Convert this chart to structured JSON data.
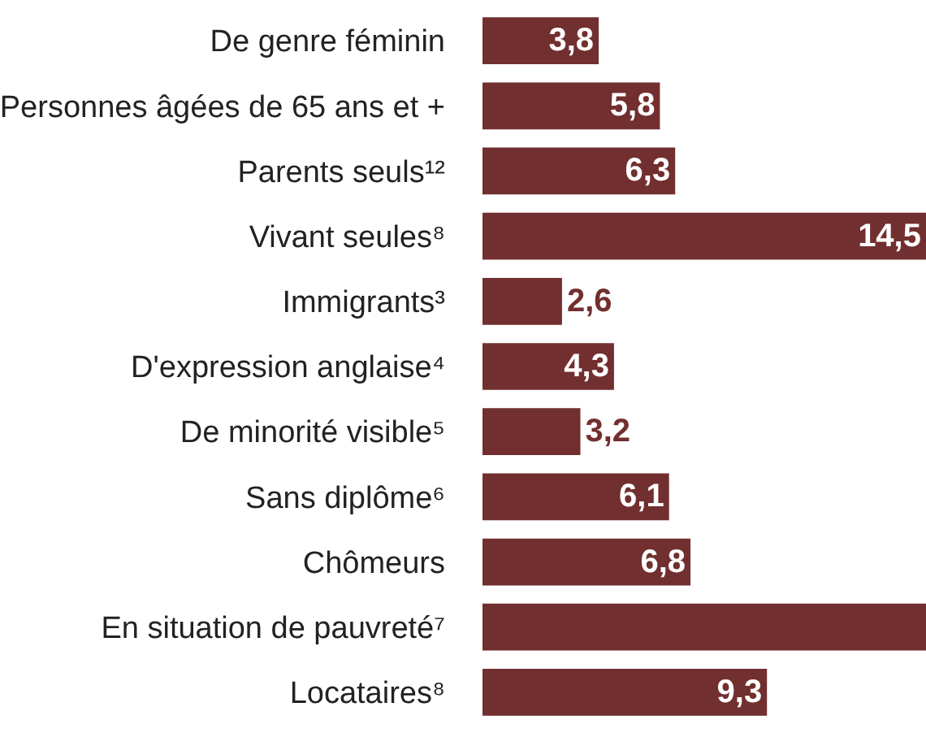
{
  "chart_data": {
    "type": "bar",
    "orientation": "horizontal",
    "categories": [
      "De genre féminin",
      "Personnes âgées de 65 ans et +",
      "Parents seuls¹²",
      "Vivant seules⁸",
      "Immigrants³",
      "D'expression anglaise⁴",
      "De minorité visible⁵",
      "Sans diplôme⁶",
      "Chômeurs",
      "En situation de pauvreté⁷",
      "Locataires⁸"
    ],
    "values": [
      3.8,
      5.8,
      6.3,
      14.5,
      2.6,
      4.3,
      3.2,
      6.1,
      6.8,
      14.5,
      9.3
    ],
    "value_labels": [
      "3,8",
      "5,8",
      "6,3",
      "14,5",
      "2,6",
      "4,3",
      "3,2",
      "6,1",
      "6,8",
      null,
      "9,3"
    ],
    "color": "#722f2f"
  }
}
